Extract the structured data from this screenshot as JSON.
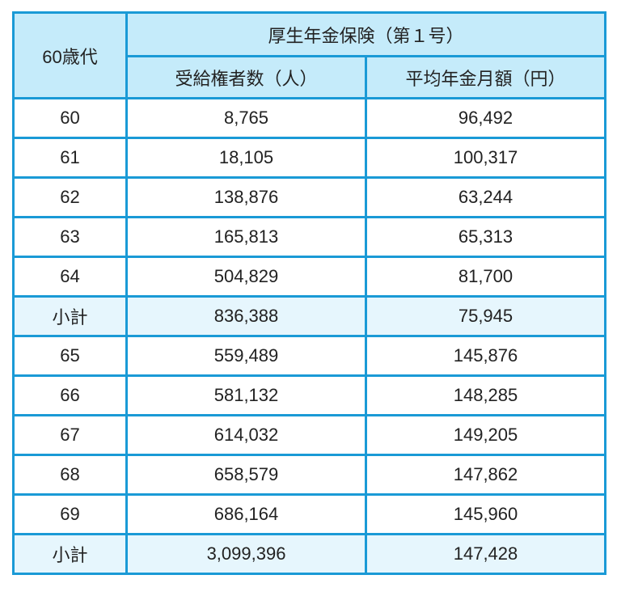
{
  "table": {
    "corner_label": "60歳代",
    "group_header": "厚生年金保険（第１号）",
    "columns": [
      "受給権者数（人）",
      "平均年金月額（円）"
    ],
    "rows": [
      {
        "age": "60",
        "recipients": "8,765",
        "avg_monthly": "96,492",
        "type": "data"
      },
      {
        "age": "61",
        "recipients": "18,105",
        "avg_monthly": "100,317",
        "type": "data"
      },
      {
        "age": "62",
        "recipients": "138,876",
        "avg_monthly": "63,244",
        "type": "data"
      },
      {
        "age": "63",
        "recipients": "165,813",
        "avg_monthly": "65,313",
        "type": "data"
      },
      {
        "age": "64",
        "recipients": "504,829",
        "avg_monthly": "81,700",
        "type": "data"
      },
      {
        "age": "小計",
        "recipients": "836,388",
        "avg_monthly": "75,945",
        "type": "subtotal"
      },
      {
        "age": "65",
        "recipients": "559,489",
        "avg_monthly": "145,876",
        "type": "data"
      },
      {
        "age": "66",
        "recipients": "581,132",
        "avg_monthly": "148,285",
        "type": "data"
      },
      {
        "age": "67",
        "recipients": "614,032",
        "avg_monthly": "149,205",
        "type": "data"
      },
      {
        "age": "68",
        "recipients": "658,579",
        "avg_monthly": "147,862",
        "type": "data"
      },
      {
        "age": "69",
        "recipients": "686,164",
        "avg_monthly": "145,960",
        "type": "data"
      },
      {
        "age": "小計",
        "recipients": "3,099,396",
        "avg_monthly": "147,428",
        "type": "subtotal"
      }
    ]
  },
  "colors": {
    "border": "#1a9ad6",
    "header_bg": "#c5ebfa",
    "subtotal_bg": "#e6f6fd",
    "text": "#222222"
  }
}
